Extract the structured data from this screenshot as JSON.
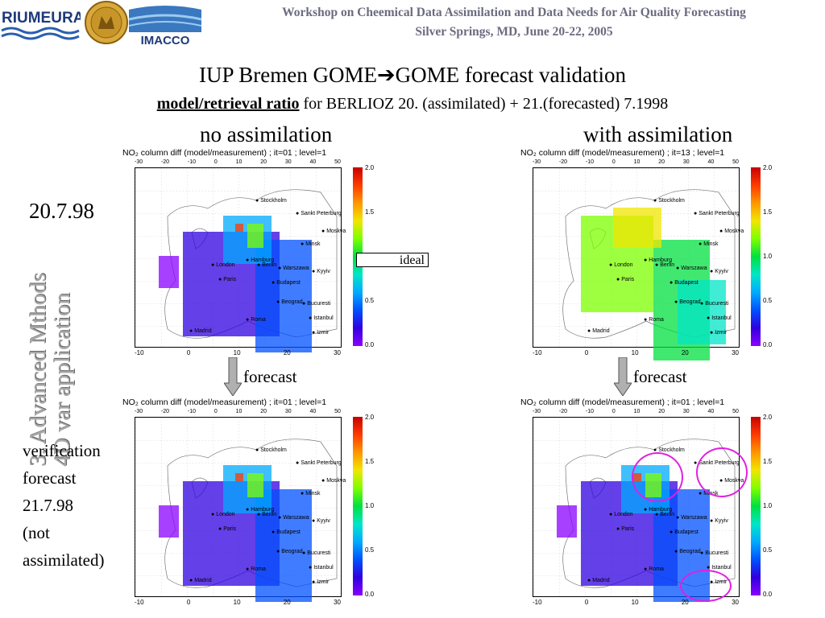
{
  "header": {
    "logo_left_text": "RIUMEURAD",
    "logo_right_text": "IMACCO",
    "line1": "Workshop on Cheemical Data Assimilation and Data Needs for Air Quality Forecasting",
    "line2": "Silver Springs, MD, June 20-22, 2005"
  },
  "slide": {
    "title_a": "IUP Bremen GOME",
    "title_arrow": "➔",
    "title_b": "GOME forecast validation",
    "subtitle_bold": "model/retrieval ratio",
    "subtitle_rest": " for BERLIOZ 20. (assimilated) + 21.(forecasted)  7.1998",
    "label_no_assim": "no assimilation",
    "label_with_assim": "with assimilation",
    "side_line1": "3. Advanced Mthods",
    "side_line2": "4D var application",
    "date_label": "20.7.98",
    "verif_lines": [
      "verification",
      "forecast",
      "21.7.98",
      "(not",
      "assimilated)"
    ],
    "ideal_label": "ideal",
    "ideal_value": "1.0",
    "forecast_label": "forecast"
  },
  "panels": [
    {
      "id": "tl",
      "title": "NO₂ column diff (model/measurement) ; it=01  ; level=1"
    },
    {
      "id": "tr",
      "title": "NO₂ column diff (model/measurement) ; it=13  ; level=1"
    },
    {
      "id": "bl",
      "title": "NO₂ column diff (model/measurement) ; it=01  ; level=1"
    },
    {
      "id": "br",
      "title": "NO₂ column diff (model/measurement) ; it=01  ; level=1"
    }
  ],
  "colorbar_labels": [
    "2.0",
    "1.5",
    "1.0",
    "0.5",
    "0.0"
  ],
  "x_ticks": [
    "-10",
    "0",
    "10",
    "20",
    "30"
  ],
  "top_ticks": [
    "-30",
    "-20",
    "-10",
    "0",
    "10",
    "20",
    "30",
    "40",
    "50"
  ],
  "cities": [
    "Sankt Peterburg",
    "Stockholm",
    "Moskva",
    "Minsk",
    "Hamburg",
    "Berlin",
    "London",
    "Warszawa",
    "Kyyiv",
    "Paris",
    "Budapest",
    "Bucuresti",
    "Beograd",
    "Roma",
    "Madrid",
    "Istanbul",
    "Izmir"
  ],
  "colors": {
    "header_text": "#6b6b80",
    "circle": "#e020e0",
    "arrow_fill": "#b0b0b0"
  }
}
